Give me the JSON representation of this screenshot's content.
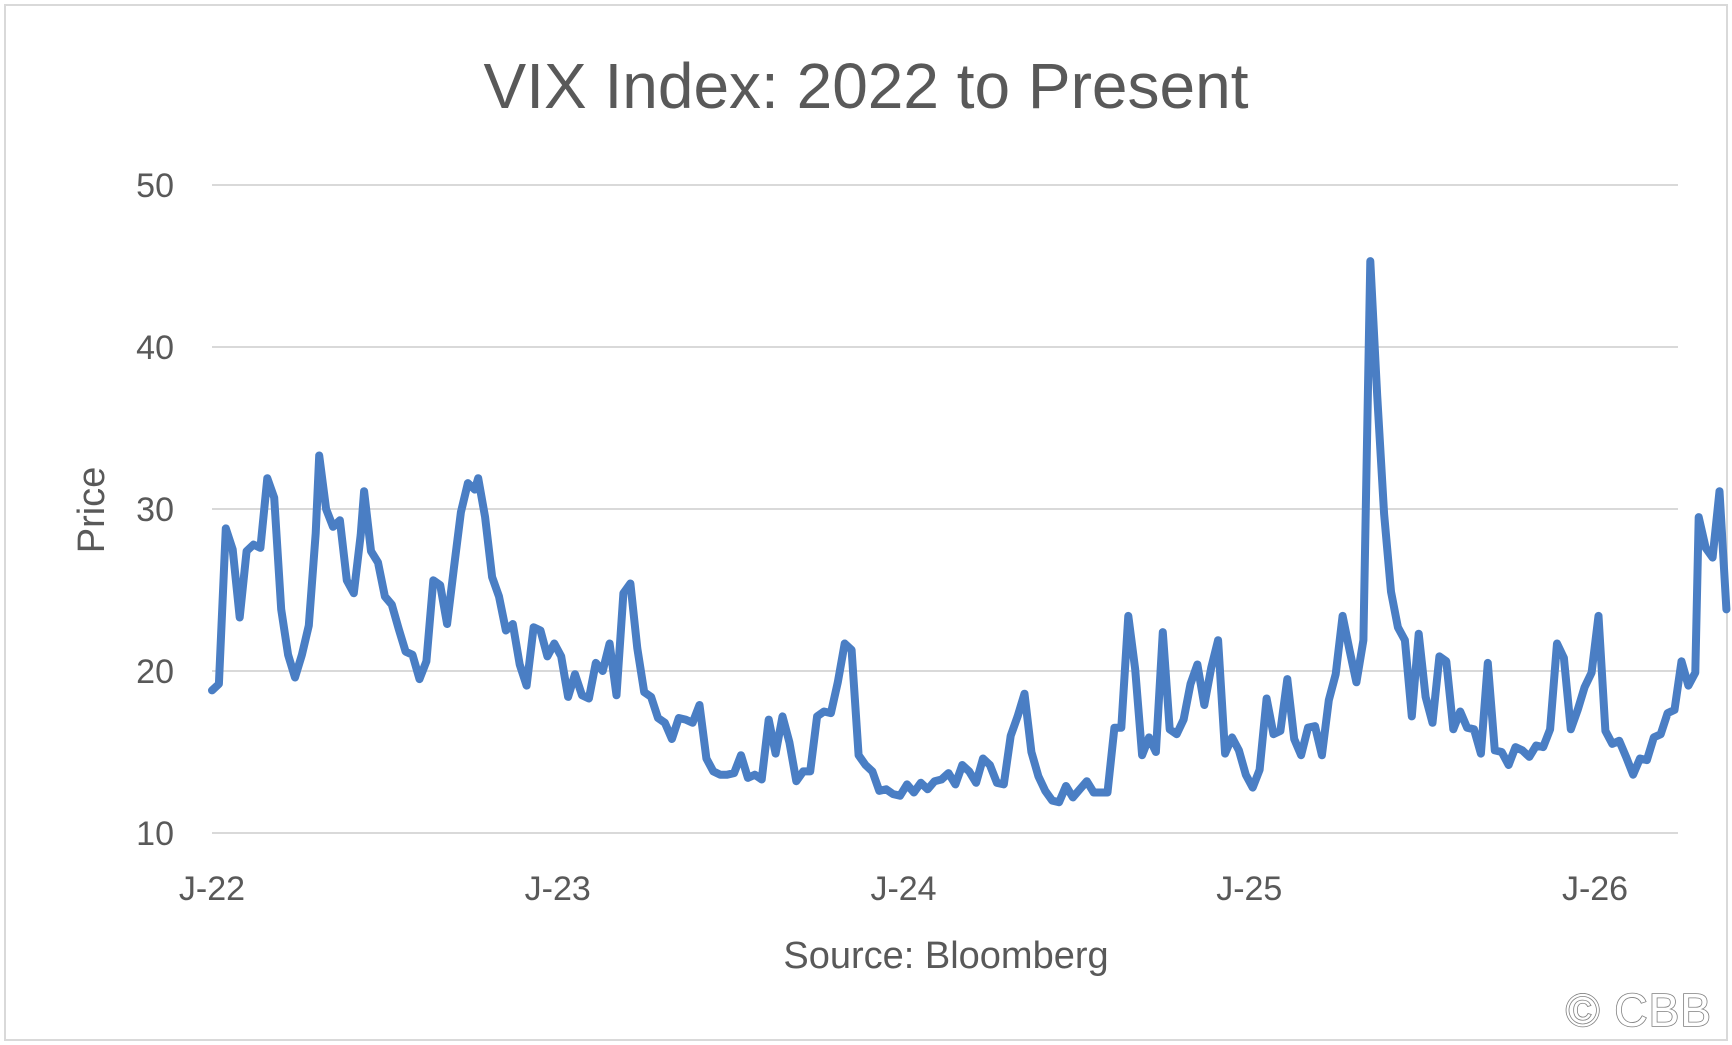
{
  "chart_data": {
    "type": "line",
    "title": "VIX Index: 2022 to Present",
    "xlabel": "Source: Bloomberg",
    "ylabel": "Price",
    "ylim": [
      10,
      50
    ],
    "yticks": [
      "10",
      "20",
      "30",
      "40",
      "50"
    ],
    "xlim": [
      2022.0,
      2026.24
    ],
    "xticks": [
      {
        "value": 2022,
        "label": "J-22"
      },
      {
        "value": 2023,
        "label": "J-23"
      },
      {
        "value": 2024,
        "label": "J-24"
      },
      {
        "value": 2025,
        "label": "J-25"
      },
      {
        "value": 2026,
        "label": "J-26"
      }
    ],
    "grid": true,
    "series": [
      {
        "color": "#4a7ec4",
        "points": [
          [
            2022.0,
            18.8
          ],
          [
            2022.02,
            19.2
          ],
          [
            2022.04,
            28.8
          ],
          [
            2022.06,
            27.5
          ],
          [
            2022.08,
            23.3
          ],
          [
            2022.1,
            27.4
          ],
          [
            2022.12,
            27.8
          ],
          [
            2022.14,
            27.6
          ],
          [
            2022.16,
            31.9
          ],
          [
            2022.18,
            30.7
          ],
          [
            2022.2,
            23.8
          ],
          [
            2022.22,
            21.0
          ],
          [
            2022.24,
            19.6
          ],
          [
            2022.26,
            21.0
          ],
          [
            2022.28,
            22.8
          ],
          [
            2022.3,
            28.5
          ],
          [
            2022.31,
            33.3
          ],
          [
            2022.33,
            30.0
          ],
          [
            2022.35,
            28.9
          ],
          [
            2022.37,
            29.3
          ],
          [
            2022.39,
            25.6
          ],
          [
            2022.41,
            24.8
          ],
          [
            2022.43,
            28.4
          ],
          [
            2022.44,
            31.1
          ],
          [
            2022.46,
            27.4
          ],
          [
            2022.48,
            26.7
          ],
          [
            2022.5,
            24.6
          ],
          [
            2022.52,
            24.1
          ],
          [
            2022.54,
            22.6
          ],
          [
            2022.56,
            21.2
          ],
          [
            2022.58,
            21.0
          ],
          [
            2022.6,
            19.5
          ],
          [
            2022.62,
            20.6
          ],
          [
            2022.64,
            25.6
          ],
          [
            2022.66,
            25.3
          ],
          [
            2022.68,
            22.9
          ],
          [
            2022.7,
            26.4
          ],
          [
            2022.72,
            29.8
          ],
          [
            2022.74,
            31.6
          ],
          [
            2022.76,
            31.2
          ],
          [
            2022.77,
            31.9
          ],
          [
            2022.79,
            29.5
          ],
          [
            2022.81,
            25.8
          ],
          [
            2022.83,
            24.6
          ],
          [
            2022.85,
            22.5
          ],
          [
            2022.87,
            22.9
          ],
          [
            2022.89,
            20.4
          ],
          [
            2022.91,
            19.1
          ],
          [
            2022.93,
            22.7
          ],
          [
            2022.95,
            22.5
          ],
          [
            2022.97,
            20.9
          ],
          [
            2022.99,
            21.7
          ],
          [
            2023.01,
            20.9
          ],
          [
            2023.03,
            18.4
          ],
          [
            2023.05,
            19.8
          ],
          [
            2023.07,
            18.5
          ],
          [
            2023.09,
            18.3
          ],
          [
            2023.11,
            20.5
          ],
          [
            2023.13,
            20.0
          ],
          [
            2023.15,
            21.7
          ],
          [
            2023.17,
            18.5
          ],
          [
            2023.19,
            24.8
          ],
          [
            2023.21,
            25.4
          ],
          [
            2023.23,
            21.4
          ],
          [
            2023.25,
            18.7
          ],
          [
            2023.27,
            18.4
          ],
          [
            2023.29,
            17.1
          ],
          [
            2023.31,
            16.8
          ],
          [
            2023.33,
            15.8
          ],
          [
            2023.35,
            17.1
          ],
          [
            2023.37,
            17.0
          ],
          [
            2023.39,
            16.8
          ],
          [
            2023.41,
            17.9
          ],
          [
            2023.43,
            14.6
          ],
          [
            2023.45,
            13.8
          ],
          [
            2023.47,
            13.6
          ],
          [
            2023.49,
            13.6
          ],
          [
            2023.51,
            13.7
          ],
          [
            2023.53,
            14.8
          ],
          [
            2023.55,
            13.4
          ],
          [
            2023.57,
            13.6
          ],
          [
            2023.59,
            13.3
          ],
          [
            2023.61,
            17.0
          ],
          [
            2023.63,
            14.9
          ],
          [
            2023.65,
            17.2
          ],
          [
            2023.67,
            15.6
          ],
          [
            2023.69,
            13.2
          ],
          [
            2023.71,
            13.8
          ],
          [
            2023.73,
            13.8
          ],
          [
            2023.75,
            17.2
          ],
          [
            2023.77,
            17.5
          ],
          [
            2023.79,
            17.4
          ],
          [
            2023.81,
            19.3
          ],
          [
            2023.83,
            21.7
          ],
          [
            2023.85,
            21.3
          ],
          [
            2023.87,
            14.8
          ],
          [
            2023.89,
            14.2
          ],
          [
            2023.91,
            13.8
          ],
          [
            2023.93,
            12.6
          ],
          [
            2023.95,
            12.7
          ],
          [
            2023.97,
            12.4
          ],
          [
            2023.99,
            12.3
          ],
          [
            2024.01,
            13.0
          ],
          [
            2024.03,
            12.5
          ],
          [
            2024.05,
            13.1
          ],
          [
            2024.07,
            12.7
          ],
          [
            2024.09,
            13.2
          ],
          [
            2024.11,
            13.3
          ],
          [
            2024.13,
            13.7
          ],
          [
            2024.15,
            13.0
          ],
          [
            2024.17,
            14.2
          ],
          [
            2024.19,
            13.8
          ],
          [
            2024.21,
            13.1
          ],
          [
            2024.23,
            14.6
          ],
          [
            2024.25,
            14.2
          ],
          [
            2024.27,
            13.1
          ],
          [
            2024.29,
            13.0
          ],
          [
            2024.31,
            16.0
          ],
          [
            2024.33,
            17.2
          ],
          [
            2024.35,
            18.6
          ],
          [
            2024.37,
            15.0
          ],
          [
            2024.39,
            13.5
          ],
          [
            2024.41,
            12.6
          ],
          [
            2024.43,
            12.0
          ],
          [
            2024.45,
            11.9
          ],
          [
            2024.47,
            12.9
          ],
          [
            2024.49,
            12.2
          ],
          [
            2024.51,
            12.7
          ],
          [
            2024.53,
            13.2
          ],
          [
            2024.55,
            12.5
          ],
          [
            2024.57,
            12.5
          ],
          [
            2024.59,
            12.5
          ],
          [
            2024.61,
            16.5
          ],
          [
            2024.63,
            16.5
          ],
          [
            2024.65,
            23.4
          ],
          [
            2024.67,
            20.1
          ],
          [
            2024.69,
            14.8
          ],
          [
            2024.71,
            15.9
          ],
          [
            2024.73,
            15.0
          ],
          [
            2024.75,
            22.4
          ],
          [
            2024.77,
            16.4
          ],
          [
            2024.79,
            16.1
          ],
          [
            2024.81,
            17.0
          ],
          [
            2024.83,
            19.2
          ],
          [
            2024.85,
            20.4
          ],
          [
            2024.87,
            17.9
          ],
          [
            2024.89,
            20.2
          ],
          [
            2024.91,
            21.9
          ],
          [
            2024.93,
            14.9
          ],
          [
            2024.95,
            15.9
          ],
          [
            2024.97,
            15.1
          ],
          [
            2024.99,
            13.6
          ],
          [
            2025.01,
            12.8
          ],
          [
            2025.03,
            13.9
          ],
          [
            2025.05,
            18.3
          ],
          [
            2025.07,
            16.1
          ],
          [
            2025.09,
            16.3
          ],
          [
            2025.11,
            19.5
          ],
          [
            2025.13,
            15.8
          ],
          [
            2025.15,
            14.8
          ],
          [
            2025.17,
            16.5
          ],
          [
            2025.19,
            16.6
          ],
          [
            2025.21,
            14.8
          ],
          [
            2025.23,
            18.2
          ],
          [
            2025.25,
            19.8
          ],
          [
            2025.27,
            23.4
          ],
          [
            2025.29,
            21.3
          ],
          [
            2025.31,
            19.3
          ],
          [
            2025.33,
            21.9
          ],
          [
            2025.35,
            45.3
          ],
          [
            2025.37,
            37.0
          ],
          [
            2025.39,
            29.7
          ],
          [
            2025.41,
            24.9
          ],
          [
            2025.43,
            22.7
          ],
          [
            2025.45,
            21.9
          ],
          [
            2025.47,
            17.2
          ],
          [
            2025.49,
            22.3
          ],
          [
            2025.51,
            18.4
          ],
          [
            2025.53,
            16.8
          ],
          [
            2025.55,
            20.9
          ],
          [
            2025.57,
            20.6
          ],
          [
            2025.59,
            16.4
          ],
          [
            2025.61,
            17.5
          ],
          [
            2025.63,
            16.5
          ],
          [
            2025.65,
            16.4
          ],
          [
            2025.67,
            14.9
          ],
          [
            2025.69,
            20.5
          ],
          [
            2025.71,
            15.1
          ],
          [
            2025.73,
            15.0
          ],
          [
            2025.75,
            14.2
          ],
          [
            2025.77,
            15.3
          ],
          [
            2025.79,
            15.1
          ],
          [
            2025.81,
            14.7
          ],
          [
            2025.83,
            15.4
          ],
          [
            2025.85,
            15.3
          ],
          [
            2025.87,
            16.4
          ],
          [
            2025.89,
            21.7
          ],
          [
            2025.91,
            20.8
          ],
          [
            2025.93,
            16.4
          ],
          [
            2025.95,
            17.6
          ],
          [
            2025.97,
            19.0
          ],
          [
            2025.99,
            19.9
          ],
          [
            2026.01,
            23.4
          ],
          [
            2026.03,
            16.3
          ],
          [
            2026.05,
            15.5
          ],
          [
            2026.07,
            15.7
          ],
          [
            2026.09,
            14.7
          ],
          [
            2026.11,
            13.6
          ],
          [
            2026.13,
            14.6
          ],
          [
            2026.15,
            14.5
          ],
          [
            2026.17,
            15.9
          ],
          [
            2026.19,
            16.1
          ],
          [
            2026.21,
            17.4
          ],
          [
            2026.23,
            17.6
          ],
          [
            2026.25,
            20.6
          ],
          [
            2026.27,
            19.1
          ],
          [
            2026.29,
            19.9
          ],
          [
            2026.3,
            29.5
          ],
          [
            2026.32,
            27.6
          ],
          [
            2026.34,
            27.0
          ],
          [
            2026.36,
            31.1
          ],
          [
            2026.38,
            23.8
          ]
        ]
      }
    ]
  },
  "watermark": "© CBB"
}
